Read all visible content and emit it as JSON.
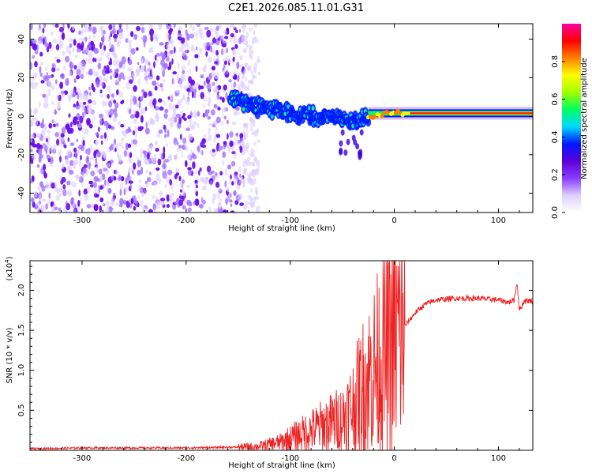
{
  "title": "C2E1.2026.085.11.01.G31",
  "chart_data": [
    {
      "id": "spectrogram",
      "type": "heatmap",
      "xlabel": "Height of straight line (km)",
      "ylabel": "Frequency (Hz)",
      "xlim": [
        -350,
        133
      ],
      "ylim": [
        -50,
        48
      ],
      "xticks": [
        -300,
        -200,
        -100,
        0,
        100
      ],
      "xtick_labels": [
        "-300",
        "-200",
        "-100",
        "0",
        "100"
      ],
      "yticks": [
        -40,
        -20,
        0,
        20,
        40
      ],
      "ytick_labels": [
        "-40",
        "-20",
        "0",
        "20",
        "40"
      ],
      "noise_region": [
        -350,
        -145
      ],
      "signal_trace": {
        "x": [
          -158,
          -150,
          -140,
          -130,
          -120,
          -110,
          -100,
          -90,
          -80,
          -70,
          -60,
          -50,
          -40,
          -30,
          -20,
          -10,
          0,
          20,
          40,
          60,
          80,
          100,
          120,
          133
        ],
        "y": [
          10,
          8,
          6,
          5,
          4,
          3,
          2,
          1,
          0,
          0,
          -1,
          -2,
          -3,
          -1,
          0,
          1,
          2,
          1,
          1,
          1,
          1,
          2,
          2,
          3
        ]
      },
      "colorbar": {
        "label": "Normalized spectral amplitude",
        "range": [
          0,
          1
        ],
        "ticks": [
          0.0,
          0.2,
          0.4,
          0.6,
          0.8
        ],
        "tick_labels": [
          "0.0",
          "0.2",
          "0.4",
          "0.6",
          "0.8"
        ],
        "colors": [
          "#ffffff",
          "#ddd0ff",
          "#8a3cff",
          "#5a00d8",
          "#0018ff",
          "#00d8ff",
          "#00ff60",
          "#a0ff00",
          "#ffff00",
          "#ff8000",
          "#ff0000",
          "#ff00a0"
        ]
      }
    },
    {
      "id": "snr",
      "type": "line",
      "xlabel": "Height of straight line (km)",
      "ylabel": "SNR (10 * v/v)",
      "y_multiplier": "(x10",
      "y_multiplier_exp": "4",
      "y_multiplier_close": ")",
      "xlim": [
        -350,
        133
      ],
      "ylim": [
        0,
        2.37
      ],
      "xticks": [
        -300,
        -200,
        -100,
        0,
        100
      ],
      "xtick_labels": [
        "-300",
        "-200",
        "-100",
        "0",
        "100"
      ],
      "yticks": [
        0.5,
        1.0,
        1.5,
        2.0
      ],
      "ytick_labels": [
        "0.5",
        "1.0",
        "1.5",
        "2.0"
      ],
      "color": "#ee2222",
      "series": {
        "name": "SNR",
        "x": [
          -350,
          -300,
          -250,
          -200,
          -150,
          -130,
          -110,
          -100,
          -90,
          -80,
          -70,
          -60,
          -50,
          -40,
          -30,
          -20,
          -10,
          0,
          10,
          20,
          30,
          40,
          60,
          80,
          100,
          110,
          115,
          118,
          120,
          125,
          133
        ],
        "y": [
          0.02,
          0.03,
          0.03,
          0.03,
          0.04,
          0.05,
          0.1,
          0.15,
          0.2,
          0.25,
          0.3,
          0.35,
          0.4,
          0.55,
          0.8,
          1.0,
          1.2,
          1.4,
          1.55,
          1.72,
          1.83,
          1.88,
          1.9,
          1.9,
          1.88,
          1.85,
          1.88,
          2.1,
          1.75,
          1.87,
          1.87
        ]
      }
    }
  ]
}
